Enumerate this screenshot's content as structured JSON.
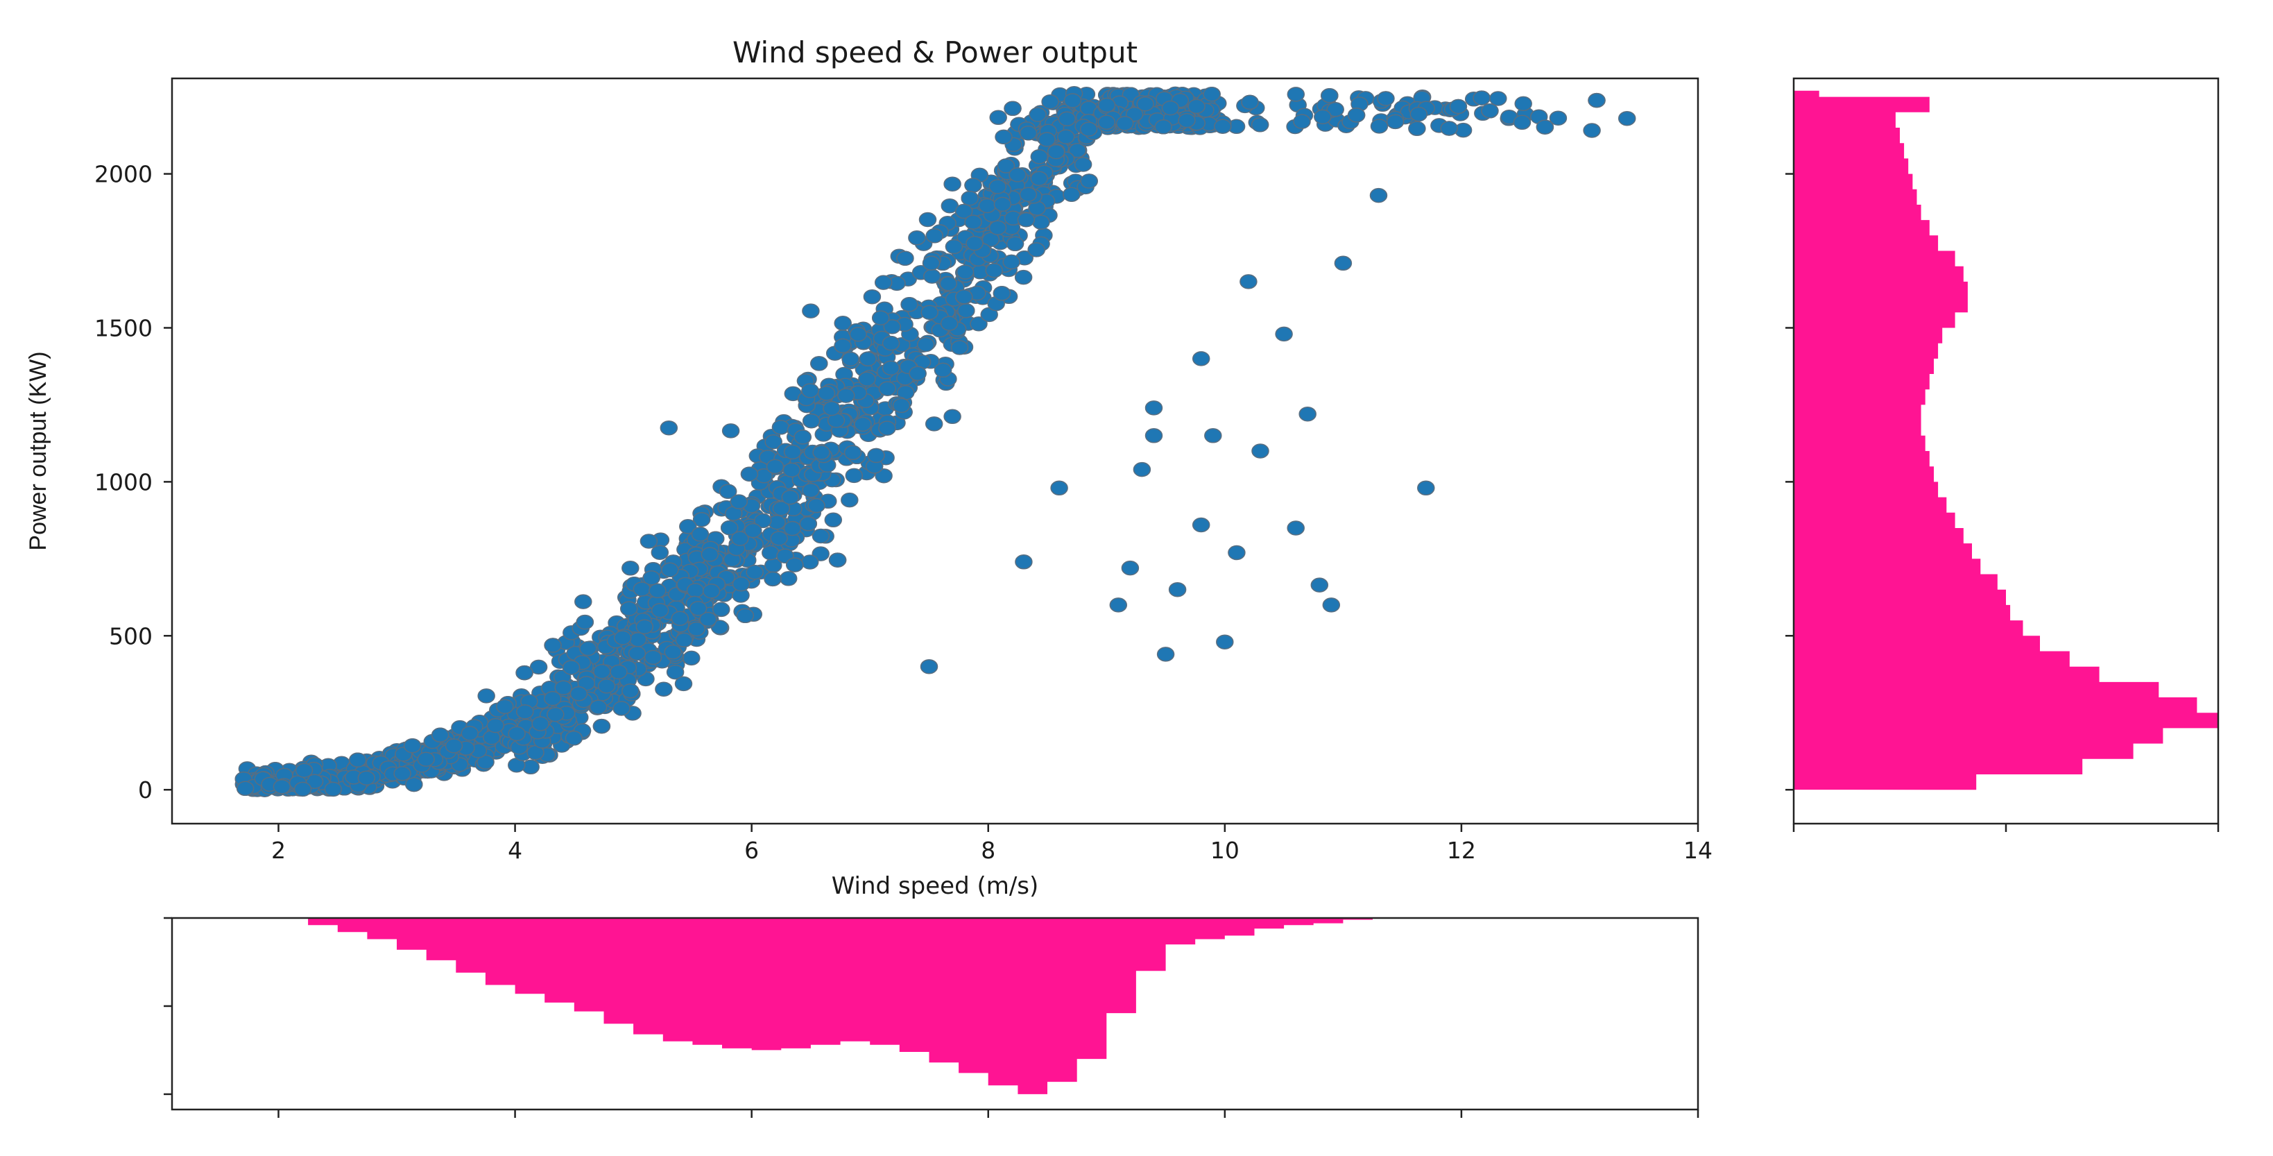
{
  "colors": {
    "scatter_fill": "#1f77b4",
    "scatter_edge": "#5a6e80",
    "histogram": "#ff1493",
    "axes": "#222222"
  },
  "chart_data": [
    {
      "type": "scatter",
      "title": "Wind speed & Power output",
      "xlabel": "Wind speed (m/s)",
      "ylabel": "Power output (KW)",
      "xlim": [
        1.1,
        14.0
      ],
      "ylim": [
        -110,
        2310
      ],
      "xticks": [
        2,
        4,
        6,
        8,
        10,
        12,
        14
      ],
      "xtick_labels": [
        "2",
        "4",
        "6",
        "8",
        "10",
        "12",
        "14"
      ],
      "yticks": [
        0,
        500,
        1000,
        1500,
        2000
      ],
      "ytick_labels": [
        "0",
        "500",
        "1000",
        "1500",
        "2000"
      ],
      "grid": false,
      "power_curve": {
        "x": [
          1.7,
          2.0,
          2.5,
          3.0,
          3.5,
          4.0,
          4.5,
          5.0,
          5.5,
          6.0,
          6.5,
          7.0,
          7.5,
          8.0,
          8.5,
          8.8,
          9.0,
          10.0,
          11.0,
          12.0,
          13.0
        ],
        "y": [
          5,
          15,
          35,
          70,
          120,
          200,
          310,
          460,
          640,
          840,
          1070,
          1310,
          1570,
          1830,
          2060,
          2170,
          2200,
          2230,
          2235,
          2230,
          2200
        ]
      },
      "outliers": {
        "x": [
          5.3,
          6.5,
          7.5,
          8.3,
          8.6,
          9.1,
          9.3,
          9.4,
          9.5,
          9.6,
          9.8,
          9.8,
          9.9,
          10.0,
          10.1,
          10.2,
          10.3,
          10.5,
          10.6,
          10.7,
          10.8,
          10.9,
          11.0,
          11.3,
          11.7,
          13.4,
          9.4,
          9.2
        ],
        "y": [
          1175,
          1555,
          400,
          740,
          980,
          600,
          1040,
          1150,
          440,
          650,
          1400,
          860,
          1150,
          480,
          770,
          1650,
          1100,
          1480,
          850,
          1220,
          665,
          600,
          1710,
          1930,
          980,
          2180,
          1240,
          720
        ]
      }
    },
    {
      "type": "bar",
      "orientation": "horizontal",
      "description_axis": "Power output (KW)",
      "ylim": [
        -110,
        2310
      ],
      "bin_edges": [
        0,
        50,
        100,
        150,
        200,
        250,
        300,
        350,
        400,
        450,
        500,
        550,
        600,
        650,
        700,
        750,
        800,
        850,
        900,
        950,
        1000,
        1050,
        1100,
        1150,
        1200,
        1250,
        1300,
        1350,
        1400,
        1450,
        1500,
        1550,
        1600,
        1650,
        1700,
        1750,
        1800,
        1850,
        1900,
        1950,
        2000,
        2050,
        2100,
        2150,
        2200,
        2250,
        2270
      ],
      "values": [
        0.43,
        0.68,
        0.8,
        0.87,
        1.0,
        0.95,
        0.86,
        0.72,
        0.65,
        0.58,
        0.54,
        0.51,
        0.5,
        0.48,
        0.44,
        0.42,
        0.4,
        0.38,
        0.36,
        0.34,
        0.33,
        0.32,
        0.31,
        0.3,
        0.3,
        0.31,
        0.32,
        0.33,
        0.34,
        0.35,
        0.38,
        0.41,
        0.41,
        0.4,
        0.38,
        0.34,
        0.32,
        0.3,
        0.29,
        0.28,
        0.27,
        0.26,
        0.25,
        0.24,
        0.32,
        0.06
      ],
      "xticks": [
        0,
        0.5,
        1.0
      ],
      "xtick_labels": [
        "",
        "",
        ""
      ]
    },
    {
      "type": "bar",
      "orientation": "vertical-down",
      "description_axis": "Wind speed (m/s)",
      "xlim": [
        1.1,
        14.0
      ],
      "bin_edges": [
        2.25,
        2.5,
        2.75,
        3.0,
        3.25,
        3.5,
        3.75,
        4.0,
        4.25,
        4.5,
        4.75,
        5.0,
        5.25,
        5.5,
        5.75,
        6.0,
        6.25,
        6.5,
        6.75,
        7.0,
        7.25,
        7.5,
        7.75,
        8.0,
        8.25,
        8.5,
        8.75,
        9.0,
        9.25,
        9.5,
        9.75,
        10.0,
        10.25,
        10.5,
        10.75,
        11.0,
        11.25
      ],
      "values": [
        0.04,
        0.08,
        0.12,
        0.18,
        0.24,
        0.31,
        0.38,
        0.43,
        0.48,
        0.53,
        0.6,
        0.66,
        0.7,
        0.72,
        0.74,
        0.75,
        0.74,
        0.72,
        0.7,
        0.72,
        0.76,
        0.82,
        0.88,
        0.95,
        1.0,
        0.93,
        0.8,
        0.54,
        0.3,
        0.15,
        0.12,
        0.1,
        0.06,
        0.04,
        0.03,
        0.01
      ],
      "yticks": [
        0,
        0.5,
        1.0
      ],
      "ytick_labels": [
        "",
        "",
        ""
      ]
    }
  ]
}
